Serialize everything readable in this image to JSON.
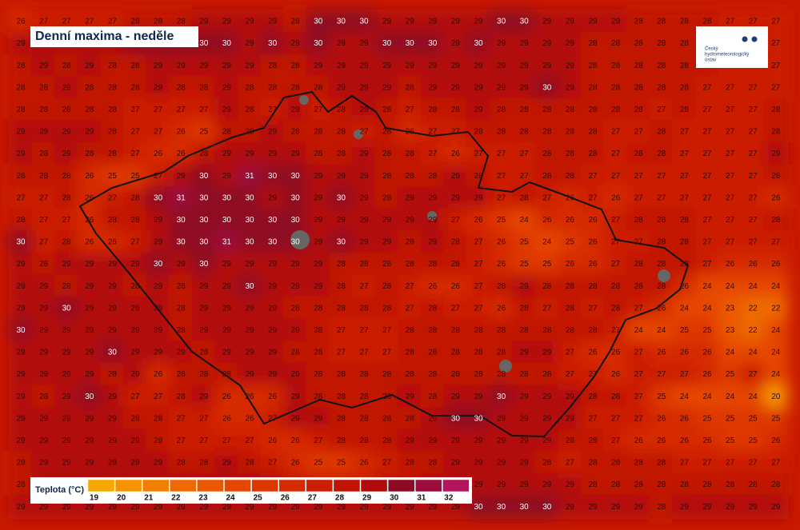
{
  "title": "Denní maxima - neděle",
  "logo": {
    "lines": [
      "Český",
      "hydrometeorologický",
      "ústav"
    ]
  },
  "grid": {
    "rows": [
      [
        26,
        27,
        27,
        27,
        27,
        28,
        28,
        28,
        29,
        29,
        29,
        29,
        28,
        30,
        30,
        30,
        29,
        29,
        29,
        29,
        29,
        30,
        30,
        29,
        29,
        29,
        29,
        28,
        28,
        28,
        28,
        27,
        27,
        27
      ],
      [
        29,
        29,
        29,
        29,
        29,
        30,
        30,
        30,
        30,
        30,
        29,
        30,
        29,
        30,
        29,
        29,
        30,
        30,
        30,
        29,
        30,
        29,
        29,
        29,
        29,
        28,
        28,
        28,
        28,
        28,
        28,
        27,
        27,
        27
      ],
      [
        28,
        29,
        28,
        29,
        28,
        28,
        29,
        29,
        29,
        29,
        29,
        28,
        28,
        29,
        29,
        29,
        29,
        29,
        29,
        29,
        29,
        29,
        29,
        29,
        29,
        28,
        28,
        28,
        28,
        28,
        28,
        27,
        27,
        27
      ],
      [
        28,
        28,
        29,
        28,
        28,
        28,
        29,
        28,
        28,
        29,
        28,
        28,
        28,
        28,
        29,
        29,
        29,
        28,
        29,
        29,
        29,
        29,
        29,
        30,
        29,
        28,
        28,
        28,
        28,
        28,
        27,
        27,
        27,
        27
      ],
      [
        28,
        28,
        28,
        28,
        28,
        27,
        27,
        27,
        27,
        29,
        28,
        27,
        29,
        27,
        28,
        29,
        28,
        27,
        28,
        28,
        29,
        28,
        28,
        28,
        28,
        28,
        28,
        28,
        27,
        28,
        27,
        27,
        27,
        28
      ],
      [
        29,
        29,
        29,
        29,
        28,
        27,
        27,
        26,
        25,
        28,
        28,
        29,
        28,
        28,
        28,
        27,
        28,
        26,
        27,
        27,
        28,
        28,
        28,
        28,
        28,
        28,
        27,
        27,
        28,
        27,
        27,
        27,
        27,
        28
      ],
      [
        29,
        28,
        29,
        28,
        28,
        27,
        26,
        26,
        28,
        29,
        29,
        29,
        29,
        28,
        28,
        29,
        28,
        28,
        27,
        26,
        27,
        27,
        27,
        28,
        28,
        28,
        27,
        28,
        28,
        27,
        27,
        27,
        27,
        29
      ],
      [
        28,
        28,
        28,
        26,
        25,
        25,
        27,
        29,
        30,
        29,
        31,
        30,
        30,
        29,
        29,
        29,
        28,
        28,
        28,
        29,
        28,
        27,
        27,
        28,
        28,
        27,
        27,
        27,
        27,
        27,
        27,
        27,
        27,
        28
      ],
      [
        27,
        27,
        28,
        26,
        27,
        28,
        30,
        31,
        30,
        30,
        30,
        29,
        30,
        29,
        30,
        29,
        28,
        29,
        29,
        29,
        29,
        27,
        28,
        27,
        26,
        27,
        26,
        27,
        27,
        27,
        27,
        27,
        27,
        26
      ],
      [
        28,
        27,
        27,
        26,
        28,
        28,
        29,
        30,
        30,
        30,
        30,
        30,
        30,
        29,
        29,
        29,
        29,
        29,
        29,
        27,
        26,
        25,
        24,
        26,
        26,
        26,
        27,
        28,
        28,
        28,
        27,
        27,
        27,
        28
      ],
      [
        30,
        27,
        28,
        26,
        26,
        27,
        29,
        30,
        30,
        31,
        30,
        30,
        30,
        29,
        30,
        29,
        29,
        28,
        29,
        28,
        27,
        26,
        25,
        24,
        25,
        26,
        27,
        27,
        28,
        28,
        27,
        27,
        27,
        27
      ],
      [
        29,
        28,
        29,
        29,
        29,
        29,
        30,
        29,
        30,
        29,
        29,
        29,
        29,
        29,
        28,
        28,
        28,
        28,
        28,
        28,
        27,
        26,
        25,
        25,
        26,
        26,
        27,
        28,
        28,
        28,
        27,
        26,
        26,
        26
      ],
      [
        29,
        29,
        28,
        29,
        29,
        28,
        29,
        28,
        29,
        29,
        30,
        29,
        29,
        29,
        28,
        27,
        28,
        27,
        26,
        26,
        27,
        28,
        29,
        28,
        28,
        28,
        28,
        28,
        28,
        26,
        24,
        24,
        24,
        24
      ],
      [
        29,
        29,
        30,
        29,
        29,
        29,
        29,
        28,
        29,
        29,
        29,
        29,
        28,
        28,
        28,
        28,
        28,
        27,
        28,
        27,
        27,
        26,
        28,
        27,
        28,
        27,
        28,
        27,
        26,
        24,
        24,
        23,
        22,
        22
      ],
      [
        30,
        29,
        29,
        29,
        29,
        29,
        29,
        28,
        29,
        29,
        29,
        29,
        29,
        28,
        27,
        27,
        27,
        28,
        28,
        28,
        28,
        28,
        28,
        28,
        28,
        28,
        27,
        24,
        24,
        25,
        25,
        23,
        22,
        24
      ],
      [
        29,
        29,
        29,
        29,
        30,
        29,
        29,
        29,
        28,
        29,
        29,
        29,
        28,
        28,
        27,
        27,
        27,
        28,
        28,
        28,
        28,
        28,
        29,
        29,
        27,
        26,
        26,
        27,
        26,
        26,
        26,
        24,
        24,
        24
      ],
      [
        29,
        29,
        29,
        29,
        28,
        29,
        26,
        28,
        28,
        28,
        29,
        29,
        29,
        28,
        28,
        28,
        28,
        28,
        28,
        28,
        28,
        28,
        28,
        28,
        27,
        27,
        26,
        27,
        27,
        27,
        26,
        25,
        27,
        24
      ],
      [
        29,
        28,
        29,
        30,
        29,
        27,
        27,
        28,
        29,
        26,
        26,
        26,
        29,
        28,
        28,
        28,
        28,
        29,
        28,
        29,
        29,
        30,
        29,
        29,
        29,
        28,
        28,
        27,
        25,
        24,
        24,
        24,
        24,
        20
      ],
      [
        29,
        29,
        29,
        29,
        29,
        28,
        28,
        27,
        27,
        26,
        26,
        27,
        29,
        29,
        28,
        28,
        28,
        28,
        29,
        30,
        30,
        29,
        29,
        29,
        29,
        27,
        27,
        27,
        26,
        26,
        25,
        25,
        25,
        25
      ],
      [
        29,
        29,
        29,
        29,
        29,
        29,
        28,
        27,
        27,
        27,
        27,
        26,
        26,
        27,
        28,
        28,
        28,
        29,
        29,
        29,
        29,
        29,
        29,
        29,
        28,
        28,
        27,
        26,
        26,
        26,
        26,
        25,
        25,
        26
      ],
      [
        28,
        29,
        29,
        29,
        29,
        29,
        29,
        28,
        28,
        29,
        28,
        27,
        26,
        25,
        25,
        26,
        27,
        28,
        28,
        29,
        29,
        29,
        29,
        28,
        27,
        28,
        28,
        28,
        28,
        27,
        27,
        27,
        27,
        27
      ],
      [
        28,
        29,
        29,
        29,
        29,
        29,
        29,
        29,
        29,
        29,
        29,
        29,
        28,
        27,
        27,
        27,
        28,
        28,
        29,
        29,
        29,
        29,
        29,
        29,
        29,
        28,
        28,
        28,
        28,
        28,
        28,
        28,
        28,
        28
      ],
      [
        29,
        29,
        29,
        29,
        29,
        29,
        29,
        29,
        29,
        29,
        29,
        29,
        29,
        29,
        29,
        29,
        29,
        29,
        29,
        29,
        30,
        30,
        30,
        30,
        29,
        29,
        29,
        29,
        28,
        29,
        29,
        29,
        29,
        29
      ]
    ]
  },
  "legend": {
    "title": "Teplota (°C)",
    "labels": [
      19,
      20,
      21,
      22,
      23,
      24,
      25,
      26,
      27,
      28,
      29,
      30,
      31,
      32
    ],
    "colors": [
      "#f7a800",
      "#f59400",
      "#f28000",
      "#ee6a00",
      "#ea5800",
      "#e54600",
      "#de3700",
      "#d62a00",
      "#cc1e00",
      "#c11300",
      "#b20a0a",
      "#8e0a22",
      "#9d0c3a",
      "#b3145a"
    ]
  }
}
